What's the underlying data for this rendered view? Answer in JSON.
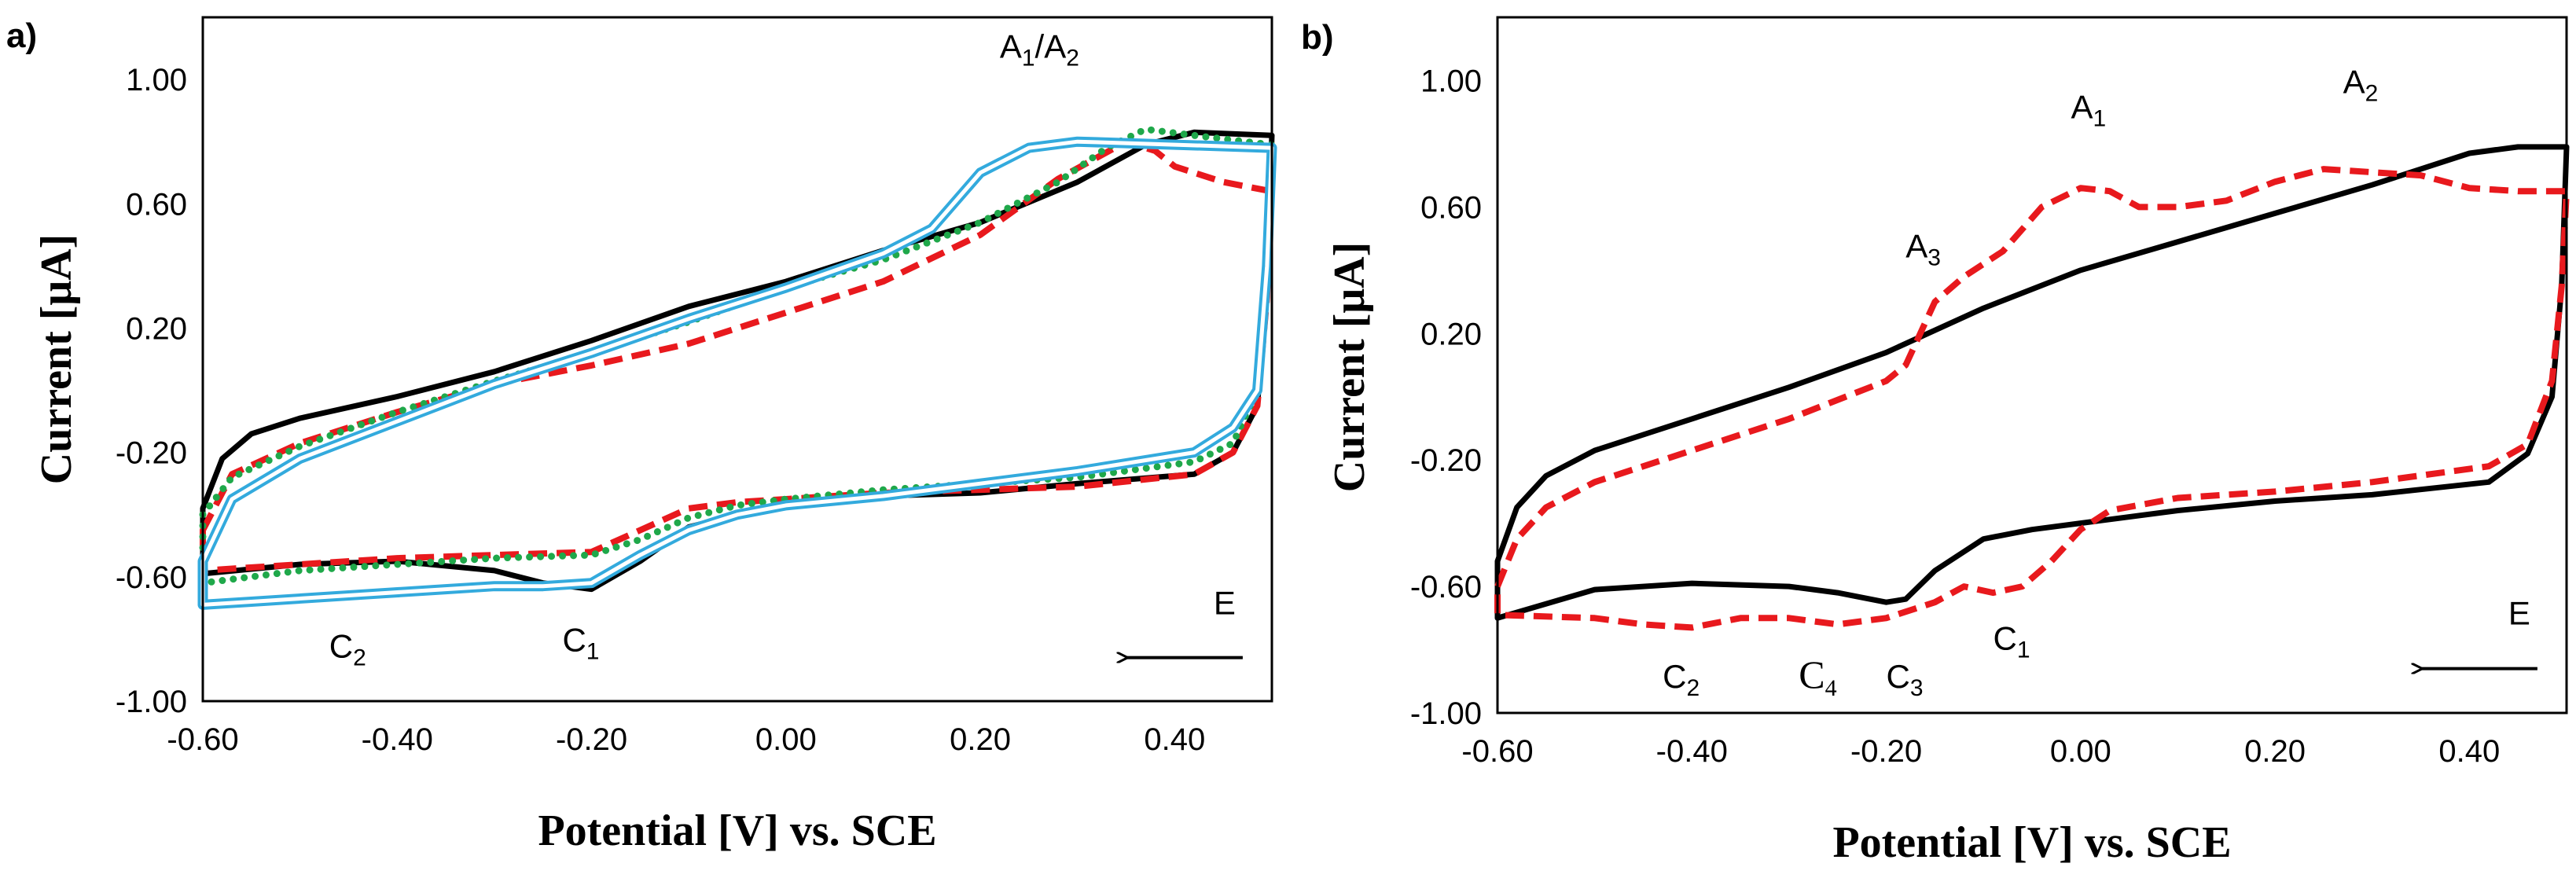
{
  "colors": {
    "black": "#000000",
    "red": "#e8191d",
    "green": "#1fa84a",
    "blue": "#33aadd"
  },
  "chart_data": [
    {
      "type": "line",
      "panel_label": "a)",
      "xlabel": "Potential [V] vs. SCE",
      "ylabel": "Current [μA]",
      "xlim": [
        -0.6,
        0.5
      ],
      "ylim": [
        -1.0,
        1.2
      ],
      "x_ticks": [
        -0.6,
        -0.4,
        -0.2,
        0.0,
        0.2,
        0.4
      ],
      "x_tick_labels": [
        "-0.60",
        "-0.40",
        "-0.20",
        "0.00",
        "0.20",
        "0.40"
      ],
      "y_ticks": [
        -1.0,
        -0.6,
        -0.2,
        0.2,
        0.6,
        1.0
      ],
      "y_tick_labels": [
        "-1.00",
        "-0.60",
        "-0.20",
        "0.20",
        "0.60",
        "1.00"
      ],
      "annotations": [
        {
          "base1": "A",
          "sub1": "1",
          "sep": "/",
          "base2": "A",
          "sub2": "2",
          "x": 0.22,
          "y": 1.07
        },
        {
          "base1": "C",
          "sub1": "2",
          "x": -0.47,
          "y": -0.86
        },
        {
          "base1": "C",
          "sub1": "1",
          "x": -0.23,
          "y": -0.84
        },
        {
          "base1": "E",
          "x": 0.44,
          "y": -0.72
        }
      ],
      "arrow": {
        "from": [
          0.47,
          -0.86
        ],
        "to": [
          0.35,
          -0.86
        ]
      },
      "series": [
        {
          "name": "black solid",
          "color": "#000000",
          "style": "solid",
          "forward": [
            [
              -0.6,
              -0.38
            ],
            [
              -0.58,
              -0.22
            ],
            [
              -0.55,
              -0.14
            ],
            [
              -0.5,
              -0.09
            ],
            [
              -0.4,
              -0.02
            ],
            [
              -0.3,
              0.06
            ],
            [
              -0.2,
              0.16
            ],
            [
              -0.1,
              0.27
            ],
            [
              0.0,
              0.35
            ],
            [
              0.1,
              0.45
            ],
            [
              0.2,
              0.54
            ],
            [
              0.3,
              0.67
            ],
            [
              0.37,
              0.79
            ],
            [
              0.42,
              0.83
            ],
            [
              0.5,
              0.82
            ]
          ],
          "reverse": [
            [
              0.5,
              0.82
            ],
            [
              0.495,
              0.35
            ],
            [
              0.485,
              -0.05
            ],
            [
              0.46,
              -0.2
            ],
            [
              0.42,
              -0.27
            ],
            [
              0.3,
              -0.3
            ],
            [
              0.2,
              -0.33
            ],
            [
              0.1,
              -0.34
            ],
            [
              0.0,
              -0.37
            ],
            [
              -0.05,
              -0.4
            ],
            [
              -0.1,
              -0.44
            ],
            [
              -0.15,
              -0.55
            ],
            [
              -0.2,
              -0.64
            ],
            [
              -0.25,
              -0.62
            ],
            [
              -0.3,
              -0.58
            ],
            [
              -0.4,
              -0.55
            ],
            [
              -0.5,
              -0.56
            ],
            [
              -0.6,
              -0.59
            ]
          ]
        },
        {
          "name": "red dashed",
          "color": "#e8191d",
          "style": "dashed",
          "forward": [
            [
              -0.6,
              -0.45
            ],
            [
              -0.57,
              -0.27
            ],
            [
              -0.5,
              -0.17
            ],
            [
              -0.4,
              -0.07
            ],
            [
              -0.3,
              0.02
            ],
            [
              -0.2,
              0.08
            ],
            [
              -0.1,
              0.15
            ],
            [
              0.0,
              0.25
            ],
            [
              0.1,
              0.35
            ],
            [
              0.2,
              0.5
            ],
            [
              0.28,
              0.68
            ],
            [
              0.35,
              0.8
            ],
            [
              0.38,
              0.77
            ],
            [
              0.4,
              0.72
            ],
            [
              0.45,
              0.67
            ],
            [
              0.5,
              0.64
            ]
          ],
          "reverse": [
            [
              0.5,
              0.64
            ],
            [
              0.495,
              0.3
            ],
            [
              0.485,
              -0.05
            ],
            [
              0.46,
              -0.2
            ],
            [
              0.42,
              -0.27
            ],
            [
              0.3,
              -0.31
            ],
            [
              0.2,
              -0.32
            ],
            [
              0.1,
              -0.33
            ],
            [
              0.0,
              -0.35
            ],
            [
              -0.05,
              -0.36
            ],
            [
              -0.1,
              -0.38
            ],
            [
              -0.15,
              -0.45
            ],
            [
              -0.2,
              -0.52
            ],
            [
              -0.3,
              -0.53
            ],
            [
              -0.4,
              -0.54
            ],
            [
              -0.5,
              -0.56
            ],
            [
              -0.6,
              -0.58
            ]
          ]
        },
        {
          "name": "green dotted",
          "color": "#1fa84a",
          "style": "dotted",
          "forward": [
            [
              -0.6,
              -0.4
            ],
            [
              -0.57,
              -0.28
            ],
            [
              -0.5,
              -0.18
            ],
            [
              -0.4,
              -0.07
            ],
            [
              -0.3,
              0.03
            ],
            [
              -0.2,
              0.12
            ],
            [
              -0.1,
              0.22
            ],
            [
              0.0,
              0.33
            ],
            [
              0.1,
              0.42
            ],
            [
              0.2,
              0.54
            ],
            [
              0.28,
              0.67
            ],
            [
              0.33,
              0.78
            ],
            [
              0.37,
              0.84
            ],
            [
              0.42,
              0.82
            ],
            [
              0.5,
              0.79
            ]
          ],
          "reverse": [
            [
              0.5,
              0.79
            ],
            [
              0.495,
              0.4
            ],
            [
              0.485,
              0.0
            ],
            [
              0.46,
              -0.17
            ],
            [
              0.42,
              -0.23
            ],
            [
              0.3,
              -0.28
            ],
            [
              0.2,
              -0.3
            ],
            [
              0.1,
              -0.32
            ],
            [
              0.0,
              -0.35
            ],
            [
              -0.05,
              -0.37
            ],
            [
              -0.1,
              -0.41
            ],
            [
              -0.15,
              -0.48
            ],
            [
              -0.2,
              -0.53
            ],
            [
              -0.3,
              -0.54
            ],
            [
              -0.4,
              -0.56
            ],
            [
              -0.5,
              -0.58
            ],
            [
              -0.6,
              -0.62
            ]
          ]
        },
        {
          "name": "blue double",
          "color": "#33aadd",
          "style": "double",
          "forward": [
            [
              -0.6,
              -0.55
            ],
            [
              -0.57,
              -0.35
            ],
            [
              -0.5,
              -0.22
            ],
            [
              -0.4,
              -0.1
            ],
            [
              -0.3,
              0.02
            ],
            [
              -0.2,
              0.12
            ],
            [
              -0.1,
              0.23
            ],
            [
              0.0,
              0.33
            ],
            [
              0.1,
              0.44
            ],
            [
              0.15,
              0.52
            ],
            [
              0.2,
              0.7
            ],
            [
              0.25,
              0.78
            ],
            [
              0.3,
              0.8
            ],
            [
              0.4,
              0.79
            ],
            [
              0.5,
              0.78
            ]
          ],
          "reverse": [
            [
              0.5,
              0.78
            ],
            [
              0.495,
              0.4
            ],
            [
              0.485,
              0.0
            ],
            [
              0.46,
              -0.12
            ],
            [
              0.42,
              -0.2
            ],
            [
              0.3,
              -0.26
            ],
            [
              0.2,
              -0.3
            ],
            [
              0.1,
              -0.34
            ],
            [
              0.0,
              -0.37
            ],
            [
              -0.05,
              -0.4
            ],
            [
              -0.1,
              -0.45
            ],
            [
              -0.15,
              -0.53
            ],
            [
              -0.2,
              -0.62
            ],
            [
              -0.25,
              -0.63
            ],
            [
              -0.3,
              -0.63
            ],
            [
              -0.35,
              -0.64
            ],
            [
              -0.45,
              -0.66
            ],
            [
              -0.55,
              -0.68
            ],
            [
              -0.6,
              -0.69
            ]
          ]
        }
      ]
    },
    {
      "type": "line",
      "panel_label": "b)",
      "xlabel": "Potential [V] vs. SCE",
      "ylabel": "Current [μA]",
      "xlim": [
        -0.6,
        0.5
      ],
      "ylim": [
        -1.0,
        1.2
      ],
      "x_ticks": [
        -0.6,
        -0.4,
        -0.2,
        0.0,
        0.2,
        0.4
      ],
      "x_tick_labels": [
        "-0.60",
        "-0.40",
        "-0.20",
        "0.00",
        "0.20",
        "0.40"
      ],
      "y_ticks": [
        -1.0,
        -0.6,
        -0.2,
        0.2,
        0.6,
        1.0
      ],
      "y_tick_labels": [
        "-1.00",
        "-0.60",
        "-0.20",
        "0.20",
        "0.60",
        "1.00"
      ],
      "annotations": [
        {
          "base1": "A",
          "sub1": "1",
          "x": -0.01,
          "y": 0.88
        },
        {
          "base1": "A",
          "sub1": "2",
          "x": 0.27,
          "y": 0.96
        },
        {
          "base1": "A",
          "sub1": "3",
          "x": -0.18,
          "y": 0.44
        },
        {
          "base1": "C",
          "sub1": "2",
          "x": -0.43,
          "y": -0.92
        },
        {
          "base1": "C",
          "sub1": "4",
          "x": -0.29,
          "y": -0.92,
          "serif": true
        },
        {
          "base1": "C",
          "sub1": "3",
          "x": -0.2,
          "y": -0.92
        },
        {
          "base1": "C",
          "sub1": "1",
          "x": -0.09,
          "y": -0.8
        },
        {
          "base1": "E",
          "x": 0.44,
          "y": -0.72
        }
      ],
      "arrow": {
        "from": [
          0.47,
          -0.86
        ],
        "to": [
          0.35,
          -0.86
        ]
      },
      "series": [
        {
          "name": "black solid",
          "color": "#000000",
          "style": "solid",
          "forward": [
            [
              -0.6,
              -0.52
            ],
            [
              -0.58,
              -0.35
            ],
            [
              -0.55,
              -0.25
            ],
            [
              -0.5,
              -0.17
            ],
            [
              -0.4,
              -0.07
            ],
            [
              -0.3,
              0.03
            ],
            [
              -0.2,
              0.14
            ],
            [
              -0.1,
              0.28
            ],
            [
              0.0,
              0.4
            ],
            [
              0.1,
              0.49
            ],
            [
              0.2,
              0.58
            ],
            [
              0.3,
              0.67
            ],
            [
              0.35,
              0.72
            ],
            [
              0.4,
              0.77
            ],
            [
              0.45,
              0.79
            ],
            [
              0.5,
              0.79
            ]
          ],
          "reverse": [
            [
              0.5,
              0.79
            ],
            [
              0.495,
              0.35
            ],
            [
              0.485,
              0.0
            ],
            [
              0.46,
              -0.18
            ],
            [
              0.42,
              -0.27
            ],
            [
              0.3,
              -0.31
            ],
            [
              0.2,
              -0.33
            ],
            [
              0.1,
              -0.36
            ],
            [
              0.0,
              -0.4
            ],
            [
              -0.05,
              -0.42
            ],
            [
              -0.1,
              -0.45
            ],
            [
              -0.15,
              -0.55
            ],
            [
              -0.18,
              -0.64
            ],
            [
              -0.2,
              -0.65
            ],
            [
              -0.25,
              -0.62
            ],
            [
              -0.3,
              -0.6
            ],
            [
              -0.4,
              -0.59
            ],
            [
              -0.5,
              -0.61
            ],
            [
              -0.6,
              -0.7
            ]
          ]
        },
        {
          "name": "red dashed",
          "color": "#e8191d",
          "style": "dashed",
          "forward": [
            [
              -0.6,
              -0.6
            ],
            [
              -0.58,
              -0.45
            ],
            [
              -0.55,
              -0.35
            ],
            [
              -0.5,
              -0.27
            ],
            [
              -0.4,
              -0.17
            ],
            [
              -0.3,
              -0.07
            ],
            [
              -0.2,
              0.05
            ],
            [
              -0.18,
              0.1
            ],
            [
              -0.15,
              0.3
            ],
            [
              -0.12,
              0.38
            ],
            [
              -0.08,
              0.46
            ],
            [
              -0.04,
              0.6
            ],
            [
              0.0,
              0.66
            ],
            [
              0.03,
              0.65
            ],
            [
              0.06,
              0.6
            ],
            [
              0.1,
              0.6
            ],
            [
              0.15,
              0.62
            ],
            [
              0.2,
              0.68
            ],
            [
              0.25,
              0.72
            ],
            [
              0.3,
              0.71
            ],
            [
              0.35,
              0.7
            ],
            [
              0.4,
              0.66
            ],
            [
              0.45,
              0.65
            ],
            [
              0.5,
              0.65
            ]
          ],
          "reverse": [
            [
              0.5,
              0.65
            ],
            [
              0.495,
              0.35
            ],
            [
              0.485,
              0.05
            ],
            [
              0.46,
              -0.15
            ],
            [
              0.42,
              -0.22
            ],
            [
              0.3,
              -0.27
            ],
            [
              0.2,
              -0.3
            ],
            [
              0.1,
              -0.32
            ],
            [
              0.03,
              -0.36
            ],
            [
              0.0,
              -0.42
            ],
            [
              -0.03,
              -0.52
            ],
            [
              -0.06,
              -0.6
            ],
            [
              -0.09,
              -0.62
            ],
            [
              -0.12,
              -0.6
            ],
            [
              -0.15,
              -0.65
            ],
            [
              -0.2,
              -0.7
            ],
            [
              -0.25,
              -0.72
            ],
            [
              -0.3,
              -0.7
            ],
            [
              -0.35,
              -0.7
            ],
            [
              -0.4,
              -0.73
            ],
            [
              -0.45,
              -0.72
            ],
            [
              -0.5,
              -0.7
            ],
            [
              -0.6,
              -0.69
            ]
          ]
        }
      ]
    }
  ]
}
